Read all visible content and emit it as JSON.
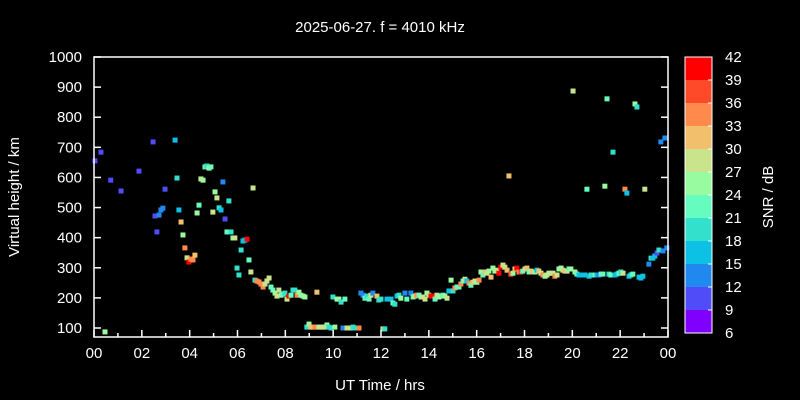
{
  "chart_data": {
    "type": "scatter",
    "title": "2025-06-27. f = 4010 kHz",
    "xlabel": "UT Time / hrs",
    "ylabel": "Virtual height / km",
    "xlim": [
      0,
      24
    ],
    "ylim": [
      70,
      1000
    ],
    "xticks": [
      "00",
      "02",
      "04",
      "06",
      "08",
      "10",
      "12",
      "14",
      "16",
      "18",
      "20",
      "22",
      "00"
    ],
    "yticks": [
      100,
      200,
      300,
      400,
      500,
      600,
      700,
      800,
      900,
      1000
    ],
    "grid": false,
    "colorbar": {
      "label": "SNR / dB",
      "ticks": [
        6,
        9,
        12,
        15,
        18,
        21,
        24,
        27,
        30,
        33,
        36,
        39,
        42
      ],
      "colors": [
        "#8000ff",
        "#4f4cf8",
        "#2089f0",
        "#0cc1e4",
        "#33e0cc",
        "#66fbbf",
        "#99fb9f",
        "#c9e48a",
        "#f2c06c",
        "#ff8a4c",
        "#ff4a2a",
        "#ff0000"
      ]
    },
    "points_fields": [
      "hour",
      "height_km",
      "snr_db"
    ],
    "points": [
      [
        0.04,
        655,
        11
      ],
      [
        0.29,
        684,
        11
      ],
      [
        0.46,
        87,
        25
      ],
      [
        0.7,
        591,
        11
      ],
      [
        1.13,
        555,
        11
      ],
      [
        1.88,
        621,
        11
      ],
      [
        2.47,
        718,
        11
      ],
      [
        2.55,
        472,
        11
      ],
      [
        2.63,
        419,
        11
      ],
      [
        2.72,
        475,
        14
      ],
      [
        2.8,
        492,
        14
      ],
      [
        2.88,
        498,
        14
      ],
      [
        2.97,
        561,
        11
      ],
      [
        3.39,
        724,
        17
      ],
      [
        3.47,
        598,
        20
      ],
      [
        3.55,
        492,
        15
      ],
      [
        3.64,
        452,
        31
      ],
      [
        3.72,
        409,
        25
      ],
      [
        3.8,
        366,
        35
      ],
      [
        3.89,
        333,
        28
      ],
      [
        3.97,
        319,
        41
      ],
      [
        4.05,
        329,
        35
      ],
      [
        4.14,
        326,
        33
      ],
      [
        4.22,
        342,
        32
      ],
      [
        4.31,
        482,
        24
      ],
      [
        4.39,
        508,
        23
      ],
      [
        4.47,
        595,
        27
      ],
      [
        4.56,
        591,
        25
      ],
      [
        4.64,
        635,
        21
      ],
      [
        4.72,
        638,
        20
      ],
      [
        4.81,
        631,
        26
      ],
      [
        4.89,
        635,
        23
      ],
      [
        4.97,
        485,
        28
      ],
      [
        5.06,
        552,
        24
      ],
      [
        5.14,
        532,
        28
      ],
      [
        5.23,
        499,
        18
      ],
      [
        5.31,
        492,
        16
      ],
      [
        5.39,
        585,
        14
      ],
      [
        5.48,
        462,
        11
      ],
      [
        5.56,
        419,
        23
      ],
      [
        5.64,
        522,
        19
      ],
      [
        5.73,
        419,
        20
      ],
      [
        5.81,
        399,
        26
      ],
      [
        5.89,
        399,
        27
      ],
      [
        5.98,
        299,
        20
      ],
      [
        6.06,
        276,
        18
      ],
      [
        6.15,
        359,
        18
      ],
      [
        6.23,
        389,
        15
      ],
      [
        6.31,
        392,
        15
      ],
      [
        6.4,
        395,
        41
      ],
      [
        6.48,
        326,
        23
      ],
      [
        6.56,
        286,
        28
      ],
      [
        6.65,
        565,
        27
      ],
      [
        6.73,
        259,
        18
      ],
      [
        6.81,
        256,
        34
      ],
      [
        6.9,
        253,
        34
      ],
      [
        6.98,
        246,
        35
      ],
      [
        7.07,
        236,
        33
      ],
      [
        7.15,
        246,
        27
      ],
      [
        7.23,
        256,
        27
      ],
      [
        7.32,
        266,
        28
      ],
      [
        7.4,
        236,
        23
      ],
      [
        7.48,
        226,
        23
      ],
      [
        7.57,
        216,
        26
      ],
      [
        7.65,
        206,
        27
      ],
      [
        7.73,
        226,
        27
      ],
      [
        7.82,
        209,
        24
      ],
      [
        7.9,
        213,
        22
      ],
      [
        7.98,
        216,
        20
      ],
      [
        8.07,
        196,
        28
      ],
      [
        8.15,
        206,
        41
      ],
      [
        8.24,
        209,
        23
      ],
      [
        8.32,
        226,
        18
      ],
      [
        8.4,
        226,
        18
      ],
      [
        8.49,
        209,
        35
      ],
      [
        8.57,
        219,
        26
      ],
      [
        8.65,
        209,
        24
      ],
      [
        8.74,
        206,
        25
      ],
      [
        8.82,
        203,
        25
      ],
      [
        8.9,
        103,
        20
      ],
      [
        8.99,
        113,
        24
      ],
      [
        9.07,
        103,
        31
      ],
      [
        9.16,
        103,
        32
      ],
      [
        9.24,
        103,
        33
      ],
      [
        9.32,
        219,
        31
      ],
      [
        9.4,
        103,
        28
      ],
      [
        9.49,
        103,
        28
      ],
      [
        9.57,
        103,
        28
      ],
      [
        9.65,
        103,
        27
      ],
      [
        9.74,
        110,
        24
      ],
      [
        9.82,
        103,
        20
      ],
      [
        9.91,
        100,
        18
      ],
      [
        9.99,
        203,
        19
      ],
      [
        10.07,
        103,
        26
      ],
      [
        10.16,
        196,
        24
      ],
      [
        10.24,
        196,
        24
      ],
      [
        10.33,
        186,
        18
      ],
      [
        10.41,
        100,
        14
      ],
      [
        10.49,
        196,
        22
      ],
      [
        10.58,
        100,
        27
      ],
      [
        10.66,
        100,
        27
      ],
      [
        10.74,
        100,
        28
      ],
      [
        10.83,
        103,
        20
      ],
      [
        10.91,
        100,
        19
      ],
      [
        10.99,
        100,
        20
      ],
      [
        11.08,
        100,
        35
      ],
      [
        11.16,
        216,
        14
      ],
      [
        11.25,
        209,
        13
      ],
      [
        11.33,
        199,
        21
      ],
      [
        11.41,
        206,
        19
      ],
      [
        11.5,
        196,
        21
      ],
      [
        11.58,
        209,
        28
      ],
      [
        11.66,
        216,
        14
      ],
      [
        11.83,
        206,
        32
      ],
      [
        11.91,
        193,
        19
      ],
      [
        12.0,
        196,
        19
      ],
      [
        12.08,
        97,
        27
      ],
      [
        12.16,
        97,
        18
      ],
      [
        12.25,
        196,
        16
      ],
      [
        12.42,
        196,
        16
      ],
      [
        12.5,
        183,
        22
      ],
      [
        12.58,
        179,
        19
      ],
      [
        12.67,
        206,
        16
      ],
      [
        12.75,
        209,
        19
      ],
      [
        12.83,
        199,
        26
      ],
      [
        13.0,
        216,
        14
      ],
      [
        13.08,
        196,
        22
      ],
      [
        13.25,
        216,
        14
      ],
      [
        13.34,
        203,
        21
      ],
      [
        13.42,
        206,
        27
      ],
      [
        13.5,
        209,
        33
      ],
      [
        13.59,
        209,
        21
      ],
      [
        13.67,
        203,
        26
      ],
      [
        13.75,
        203,
        27
      ],
      [
        13.84,
        196,
        28
      ],
      [
        13.92,
        216,
        25
      ],
      [
        14.0,
        209,
        27
      ],
      [
        14.09,
        206,
        41
      ],
      [
        14.17,
        206,
        41
      ],
      [
        14.26,
        196,
        23
      ],
      [
        14.34,
        209,
        27
      ],
      [
        14.42,
        203,
        25
      ],
      [
        14.51,
        206,
        24
      ],
      [
        14.59,
        209,
        22
      ],
      [
        14.67,
        206,
        25
      ],
      [
        14.76,
        199,
        28
      ],
      [
        14.84,
        223,
        15
      ],
      [
        14.93,
        259,
        24
      ],
      [
        15.01,
        223,
        20
      ],
      [
        15.09,
        233,
        34
      ],
      [
        15.18,
        236,
        21
      ],
      [
        15.26,
        236,
        22
      ],
      [
        15.34,
        246,
        33
      ],
      [
        15.43,
        256,
        21
      ],
      [
        15.51,
        262,
        27
      ],
      [
        15.59,
        256,
        16
      ],
      [
        15.68,
        249,
        35
      ],
      [
        15.76,
        242,
        23
      ],
      [
        15.84,
        252,
        30
      ],
      [
        15.93,
        256,
        28
      ],
      [
        16.01,
        252,
        26
      ],
      [
        16.1,
        259,
        34
      ],
      [
        16.18,
        286,
        26
      ],
      [
        16.26,
        276,
        22
      ],
      [
        16.35,
        286,
        32
      ],
      [
        16.43,
        282,
        27
      ],
      [
        16.51,
        289,
        26
      ],
      [
        16.6,
        269,
        31
      ],
      [
        16.68,
        299,
        25
      ],
      [
        16.76,
        289,
        26
      ],
      [
        16.85,
        292,
        27
      ],
      [
        16.93,
        282,
        39
      ],
      [
        17.01,
        302,
        39
      ],
      [
        17.1,
        309,
        28
      ],
      [
        17.18,
        302,
        27
      ],
      [
        17.27,
        292,
        32
      ],
      [
        17.35,
        605,
        32
      ],
      [
        17.43,
        279,
        37
      ],
      [
        17.52,
        282,
        24
      ],
      [
        17.6,
        296,
        31
      ],
      [
        17.68,
        299,
        41
      ],
      [
        17.77,
        286,
        35
      ],
      [
        17.85,
        286,
        37
      ],
      [
        17.93,
        289,
        21
      ],
      [
        18.02,
        296,
        27
      ],
      [
        18.1,
        299,
        31
      ],
      [
        18.19,
        286,
        22
      ],
      [
        18.27,
        289,
        27
      ],
      [
        18.35,
        286,
        32
      ],
      [
        18.44,
        286,
        25
      ],
      [
        18.52,
        292,
        15
      ],
      [
        18.6,
        289,
        32
      ],
      [
        18.69,
        282,
        28
      ],
      [
        18.77,
        276,
        35
      ],
      [
        18.86,
        272,
        26
      ],
      [
        18.94,
        276,
        27
      ],
      [
        19.02,
        282,
        26
      ],
      [
        19.11,
        282,
        27
      ],
      [
        19.19,
        282,
        27
      ],
      [
        19.27,
        272,
        34
      ],
      [
        19.36,
        276,
        28
      ],
      [
        19.44,
        296,
        26
      ],
      [
        19.53,
        299,
        25
      ],
      [
        19.61,
        292,
        27
      ],
      [
        19.69,
        289,
        31
      ],
      [
        19.78,
        289,
        27
      ],
      [
        19.86,
        296,
        23
      ],
      [
        19.94,
        296,
        25
      ],
      [
        20.03,
        887,
        28
      ],
      [
        20.11,
        286,
        26
      ],
      [
        20.19,
        279,
        21
      ],
      [
        20.28,
        276,
        15
      ],
      [
        20.36,
        276,
        15
      ],
      [
        20.44,
        276,
        15
      ],
      [
        20.53,
        276,
        15
      ],
      [
        20.61,
        561,
        22
      ],
      [
        20.7,
        272,
        16
      ],
      [
        20.78,
        276,
        18
      ],
      [
        20.86,
        276,
        20
      ],
      [
        20.95,
        276,
        21
      ],
      [
        21.03,
        276,
        15
      ],
      [
        21.11,
        276,
        14
      ],
      [
        21.2,
        279,
        21
      ],
      [
        21.28,
        279,
        22
      ],
      [
        21.36,
        571,
        25
      ],
      [
        21.45,
        861,
        22
      ],
      [
        21.53,
        279,
        19
      ],
      [
        21.61,
        276,
        21
      ],
      [
        21.7,
        684,
        19
      ],
      [
        21.78,
        276,
        15
      ],
      [
        21.86,
        279,
        15
      ],
      [
        21.95,
        282,
        21
      ],
      [
        22.03,
        286,
        19
      ],
      [
        22.12,
        282,
        27
      ],
      [
        22.2,
        561,
        35
      ],
      [
        22.28,
        548,
        15
      ],
      [
        22.37,
        272,
        15
      ],
      [
        22.45,
        276,
        18
      ],
      [
        22.53,
        279,
        23
      ],
      [
        22.62,
        844,
        24
      ],
      [
        22.7,
        834,
        19
      ],
      [
        22.79,
        269,
        16
      ],
      [
        22.87,
        266,
        15
      ],
      [
        22.95,
        272,
        15
      ],
      [
        23.03,
        561,
        28
      ],
      [
        23.2,
        312,
        14
      ],
      [
        23.29,
        332,
        19
      ],
      [
        23.37,
        332,
        16
      ],
      [
        23.45,
        339,
        16
      ],
      [
        23.54,
        349,
        11
      ],
      [
        23.62,
        359,
        20
      ],
      [
        23.7,
        718,
        14
      ],
      [
        23.79,
        356,
        14
      ],
      [
        23.87,
        731,
        14
      ],
      [
        23.95,
        366,
        14
      ]
    ]
  }
}
